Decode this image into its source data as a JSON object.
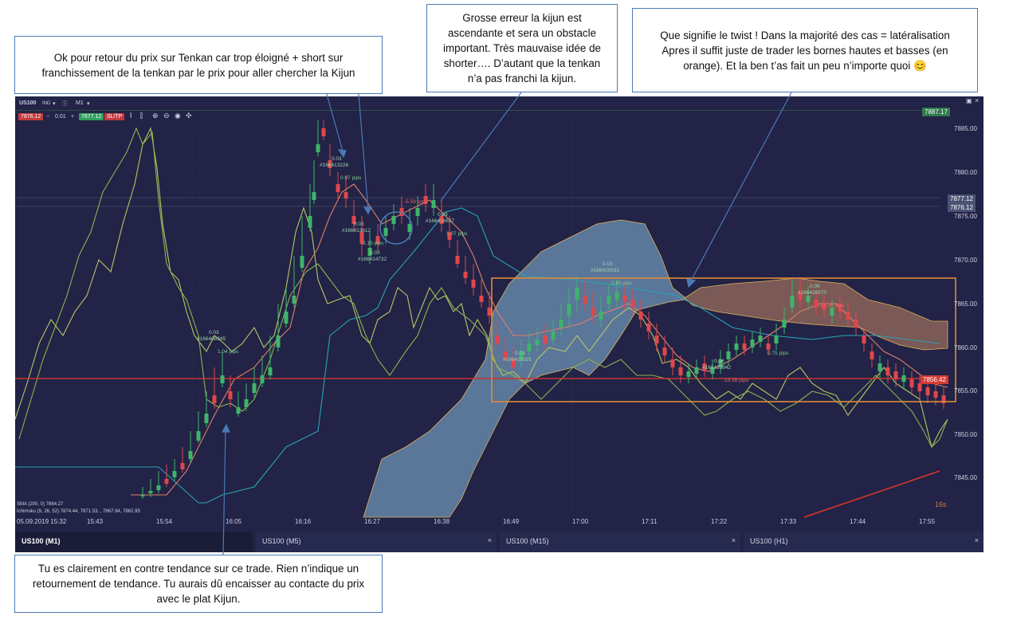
{
  "annotations": {
    "note_tenkan": "Ok pour retour du prix sur Tenkan car trop éloigné + short sur\nfranchissement de la tenkan par le prix pour aller chercher la Kijun",
    "note_kijun": "Grosse erreur la kijun est\nascendante et sera un obstacle\nimportant. Très mauvaise idée de\nshorter…. D’autant que la tenkan\nn’a pas franchi la kijun.",
    "note_twist": "Que signifie le twist ! Dans la majorité des cas = latéralisation\nApres il suffit juste de trader les bornes hautes et basses (en\norange). Et la ben t’as fait un peu n’importe quoi 😊",
    "note_trend": "Tu es clairement en contre tendance sur ce trade. Rien n’indique un\nretournement de tendance. Tu aurais dû encaisser au contacte du prix\navec le plat Kijun."
  },
  "toolbar": {
    "symbol": "US100",
    "ind": "IND",
    "timeframe": "M1",
    "bid": "7876.12",
    "qty": "0.01",
    "ask": "7877.12",
    "sltp": "SL/TP"
  },
  "chart": {
    "price_labels": [
      "7885.00",
      "7880.00",
      "7875.00",
      "7870.00",
      "7865.00",
      "7860.00",
      "7855.00",
      "7850.00",
      "7845.00"
    ],
    "time_labels": [
      "15:43",
      "15:54",
      "16:05",
      "16:16",
      "16:27",
      "16:38",
      "16:49",
      "17:00",
      "17:11",
      "17:22",
      "17:33",
      "17:44",
      "17:55"
    ],
    "date_label": "05.09.2019 15:32",
    "tag_top": "7887.17",
    "tag_ask": "7877.12",
    "tag_bid": "7876.12",
    "tag_last": "7856.42",
    "countdown": "16s",
    "legend_sma": "SMA (200, 0) 7864.27",
    "legend_ichimoku": "Ichimoku (9, 26, 52) 7874.44, 7871.53, , 7867.94, 7862.95",
    "trades": [
      {
        "tag": "#166408945",
        "size": "0.03",
        "pips": "1.04 pips"
      },
      {
        "tag": "#166413226",
        "size": "0.03",
        "pips": "0.97 pips"
      },
      {
        "tag": "#166413612",
        "size": "0.03",
        "pips": "2.15 pips"
      },
      {
        "tag": "#166414732",
        "size": "0.03",
        "pips": ""
      },
      {
        "tag": "",
        "size": "",
        "pips": "-5.59 pips"
      },
      {
        "tag": "#166416637",
        "size": "0.03",
        "pips": "1.07 pips"
      },
      {
        "tag": "#166420031",
        "size": "0.03",
        "pips": "2.85 pips"
      },
      {
        "tag": "#166418321",
        "size": "0.03",
        "pips": ""
      },
      {
        "tag": "#166423942",
        "size": "0.06",
        "pips": "-13.58 pips"
      },
      {
        "tag": "",
        "size": "",
        "pips": "0.75 pips"
      },
      {
        "tag": "#166426570",
        "size": "0.06",
        "pips": "-12.16 pips"
      }
    ]
  },
  "tabs": [
    {
      "label": "US100 (M1)",
      "active": true
    },
    {
      "label": "US100 (M5)",
      "close": "×"
    },
    {
      "label": "US100 (M15)",
      "close": "×"
    },
    {
      "label": "US100 (H1)",
      "close": "×"
    }
  ],
  "colors": {
    "background": "#222346",
    "bull": "#3fb46a",
    "bear": "#e0474c",
    "cloud_bull": "#6e93b6",
    "cloud_bear": "#a0705d",
    "range_box": "#e08a3a",
    "annotation_border": "#4a7ab5"
  }
}
